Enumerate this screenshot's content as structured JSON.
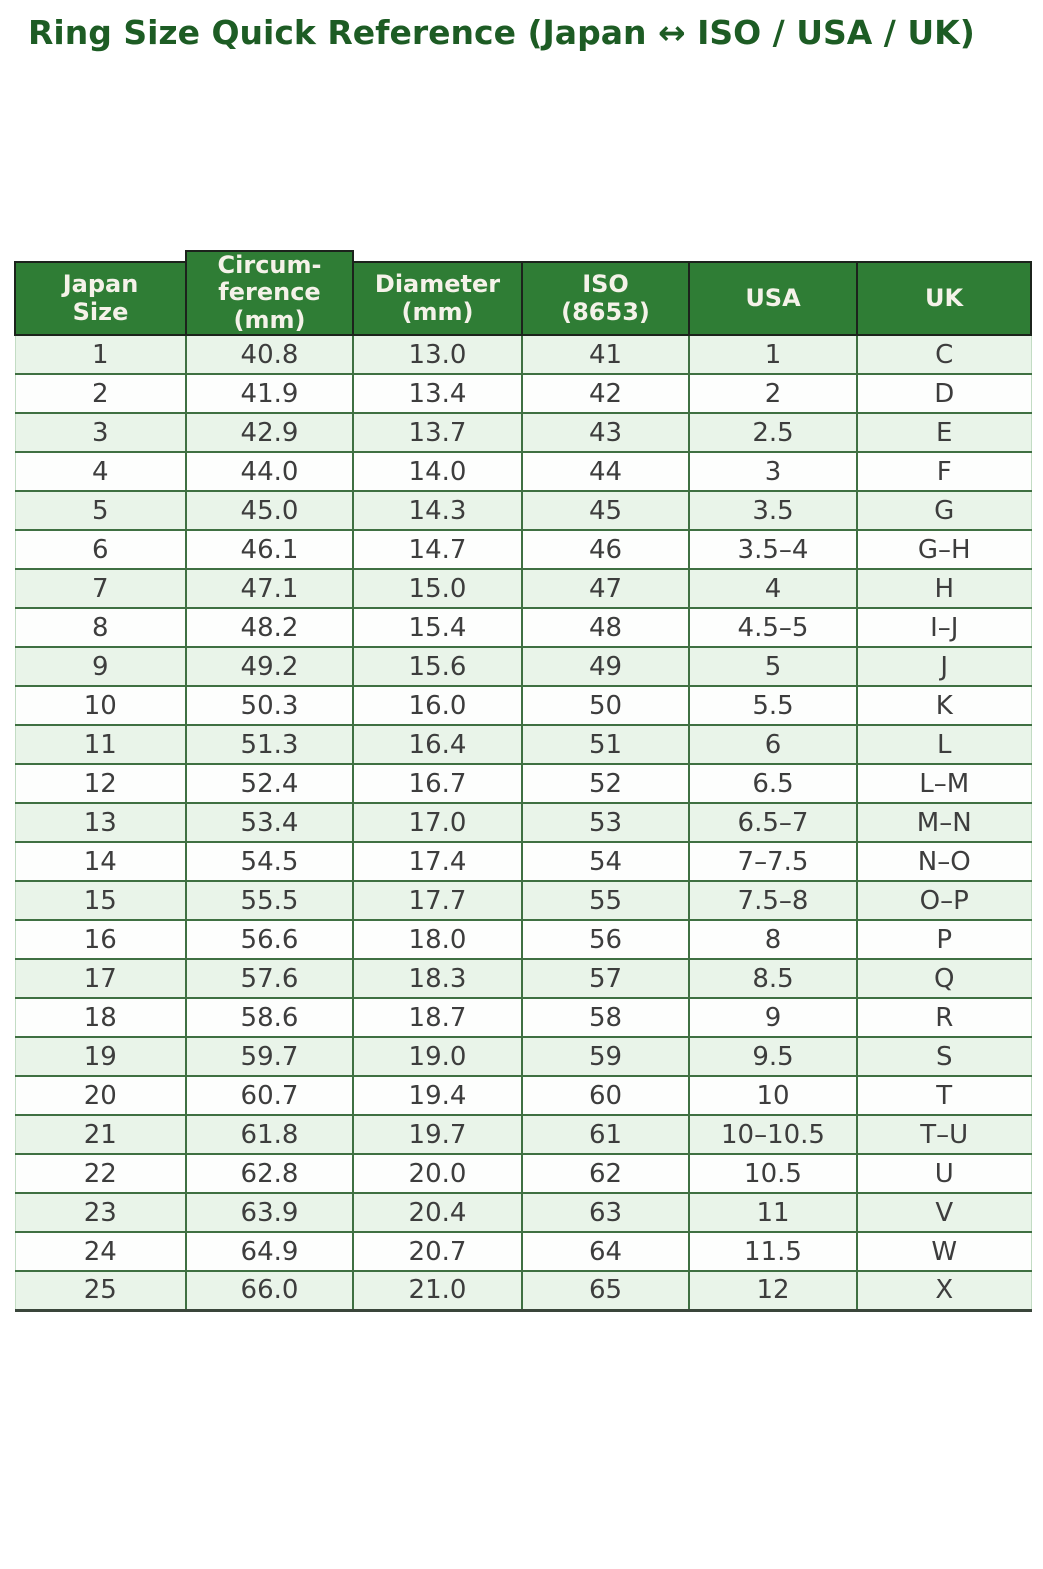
{
  "page_title": "Ring Size Quick Reference (Japan ↔ ISO / USA / UK)",
  "chart_data": {
    "type": "table",
    "title": "Ring Size Quick Reference (Japan ↔ ISO / USA / UK)",
    "columns": [
      "Japan\nSize",
      "Circum-\nference\n(mm)",
      "Diameter\n(mm)",
      "ISO\n(8653)",
      "USA",
      "UK"
    ],
    "column_keys": [
      "japan-size",
      "circumference-mm",
      "diameter-mm",
      "iso-8653",
      "usa",
      "uk"
    ],
    "rows": [
      [
        "1",
        "40.8",
        "13.0",
        "41",
        "1",
        "C"
      ],
      [
        "2",
        "41.9",
        "13.4",
        "42",
        "2",
        "D"
      ],
      [
        "3",
        "42.9",
        "13.7",
        "43",
        "2.5",
        "E"
      ],
      [
        "4",
        "44.0",
        "14.0",
        "44",
        "3",
        "F"
      ],
      [
        "5",
        "45.0",
        "14.3",
        "45",
        "3.5",
        "G"
      ],
      [
        "6",
        "46.1",
        "14.7",
        "46",
        "3.5–4",
        "G–H"
      ],
      [
        "7",
        "47.1",
        "15.0",
        "47",
        "4",
        "H"
      ],
      [
        "8",
        "48.2",
        "15.4",
        "48",
        "4.5–5",
        "I–J"
      ],
      [
        "9",
        "49.2",
        "15.6",
        "49",
        "5",
        "J"
      ],
      [
        "10",
        "50.3",
        "16.0",
        "50",
        "5.5",
        "K"
      ],
      [
        "11",
        "51.3",
        "16.4",
        "51",
        "6",
        "L"
      ],
      [
        "12",
        "52.4",
        "16.7",
        "52",
        "6.5",
        "L–M"
      ],
      [
        "13",
        "53.4",
        "17.0",
        "53",
        "6.5–7",
        "M–N"
      ],
      [
        "14",
        "54.5",
        "17.4",
        "54",
        "7–7.5",
        "N–O"
      ],
      [
        "15",
        "55.5",
        "17.7",
        "55",
        "7.5–8",
        "O–P"
      ],
      [
        "16",
        "56.6",
        "18.0",
        "56",
        "8",
        "P"
      ],
      [
        "17",
        "57.6",
        "18.3",
        "57",
        "8.5",
        "Q"
      ],
      [
        "18",
        "58.6",
        "18.7",
        "58",
        "9",
        "R"
      ],
      [
        "19",
        "59.7",
        "19.0",
        "59",
        "9.5",
        "S"
      ],
      [
        "20",
        "60.7",
        "19.4",
        "60",
        "10",
        "T"
      ],
      [
        "21",
        "61.8",
        "19.7",
        "61",
        "10–10.5",
        "T–U"
      ],
      [
        "22",
        "62.8",
        "20.0",
        "62",
        "10.5",
        "U"
      ],
      [
        "23",
        "63.9",
        "20.4",
        "63",
        "11",
        "V"
      ],
      [
        "24",
        "64.9",
        "20.7",
        "64",
        "11.5",
        "W"
      ],
      [
        "25",
        "66.0",
        "21.0",
        "65",
        "12",
        "X"
      ]
    ]
  },
  "colors": {
    "header_bg": "#2f7d35",
    "header_text": "#f5f2e9",
    "title_text": "#1d5c24",
    "row_stripe": "#e9f4e9",
    "row_white": "#fdfefd",
    "grid_line": "#3f7042",
    "header_border": "#1c231c",
    "bottom_border": "#3a463b",
    "cell_text": "#3d3d3d",
    "edge_pale": "#c3dcc4"
  }
}
